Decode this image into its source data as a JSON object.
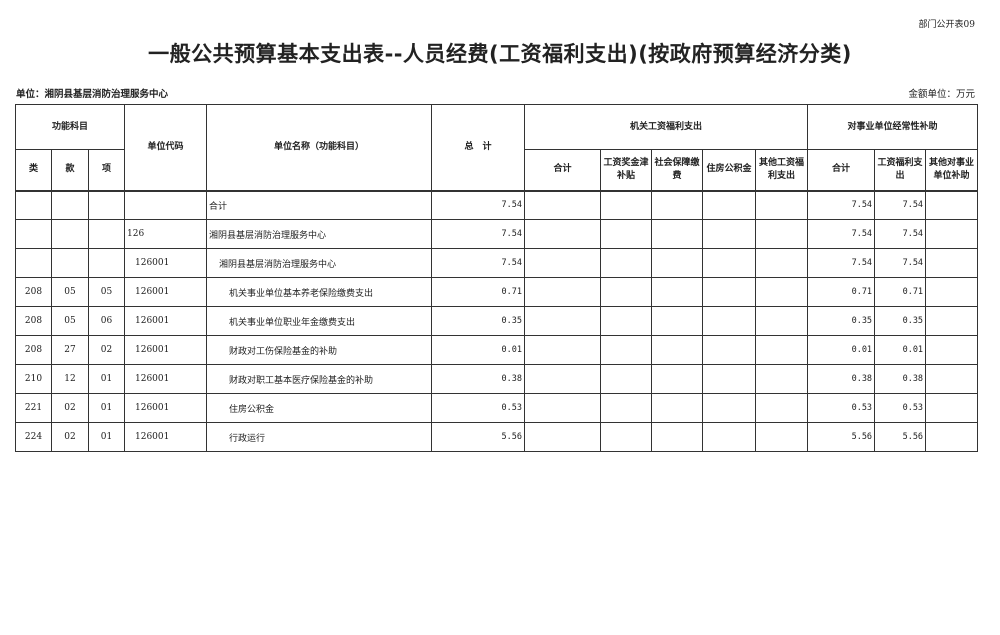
{
  "form_code": "部门公开表09",
  "title": "一般公共预算基本支出表--人员经费(工资福利支出)(按政府预算经济分类)",
  "unit_label": "单位：湘阴县基层消防治理服务中心",
  "money_unit": "金额单位：万元",
  "headers": {
    "func": "功能科目",
    "lei": "类",
    "kuan": "款",
    "xiang": "项",
    "unit_code": "单位代码",
    "unit_name": "单位名称（功能科目）",
    "total": "总　计",
    "jiguan": "机关工资福利支出",
    "shiye": "对事业单位经常性补助",
    "jg_sum": "合计",
    "jg_wage": "工资奖金津补贴",
    "jg_social": "社会保障缴费",
    "jg_house": "住房公积金",
    "jg_other": "其他工资福利支出",
    "sy_sum": "合计",
    "sy_wage": "工资福利支出",
    "sy_other": "其他对事业单位补助"
  },
  "rows": [
    {
      "lei": "",
      "kuan": "",
      "xiang": "",
      "code": "",
      "name": "合计",
      "total": "7.54",
      "sy_sum": "7.54",
      "sy_wage": "7.54",
      "level": 0
    },
    {
      "lei": "",
      "kuan": "",
      "xiang": "",
      "code": "126",
      "name": "湘阴县基层消防治理服务中心",
      "total": "7.54",
      "sy_sum": "7.54",
      "sy_wage": "7.54",
      "level": 0
    },
    {
      "lei": "",
      "kuan": "",
      "xiang": "",
      "code": "126001",
      "name": "湘阴县基层消防治理服务中心",
      "total": "7.54",
      "sy_sum": "7.54",
      "sy_wage": "7.54",
      "level": 1
    },
    {
      "lei": "208",
      "kuan": "05",
      "xiang": "05",
      "code": "126001",
      "name": "机关事业单位基本养老保险缴费支出",
      "total": "0.71",
      "sy_sum": "0.71",
      "sy_wage": "0.71",
      "level": 2
    },
    {
      "lei": "208",
      "kuan": "05",
      "xiang": "06",
      "code": "126001",
      "name": "机关事业单位职业年金缴费支出",
      "total": "0.35",
      "sy_sum": "0.35",
      "sy_wage": "0.35",
      "level": 2
    },
    {
      "lei": "208",
      "kuan": "27",
      "xiang": "02",
      "code": "126001",
      "name": "财政对工伤保险基金的补助",
      "total": "0.01",
      "sy_sum": "0.01",
      "sy_wage": "0.01",
      "level": 2
    },
    {
      "lei": "210",
      "kuan": "12",
      "xiang": "01",
      "code": "126001",
      "name": "财政对职工基本医疗保险基金的补助",
      "total": "0.38",
      "sy_sum": "0.38",
      "sy_wage": "0.38",
      "level": 2
    },
    {
      "lei": "221",
      "kuan": "02",
      "xiang": "01",
      "code": "126001",
      "name": "住房公积金",
      "total": "0.53",
      "sy_sum": "0.53",
      "sy_wage": "0.53",
      "level": 2
    },
    {
      "lei": "224",
      "kuan": "02",
      "xiang": "01",
      "code": "126001",
      "name": "行政运行",
      "total": "5.56",
      "sy_sum": "5.56",
      "sy_wage": "5.56",
      "level": 2
    }
  ]
}
